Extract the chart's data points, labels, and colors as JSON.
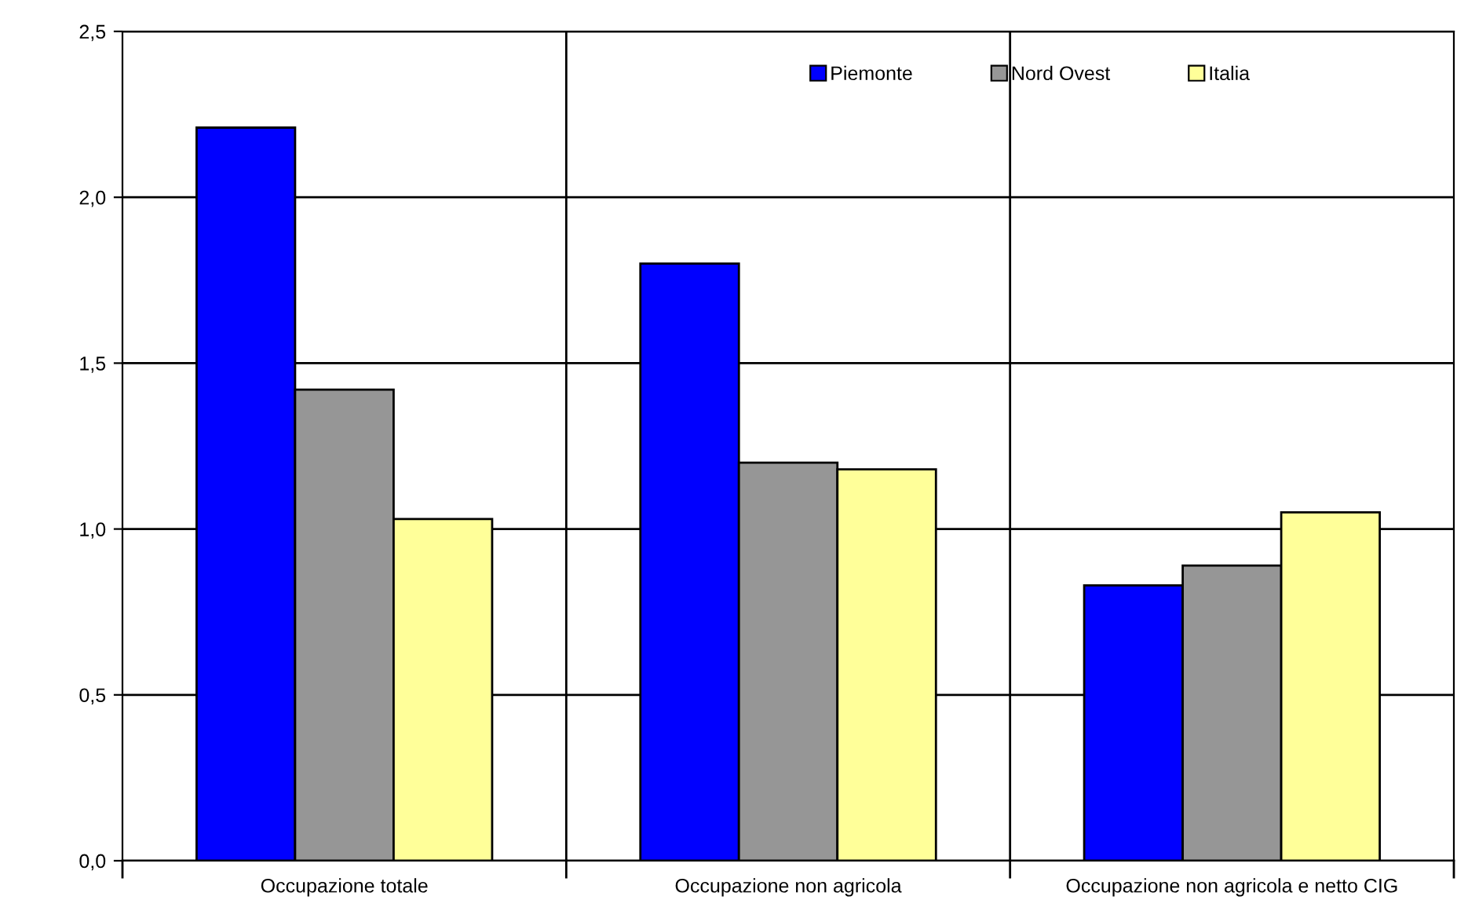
{
  "chart_data": {
    "type": "bar",
    "categories": [
      "Occupazione totale",
      "Occupazione non agricola",
      "Occupazione non agricola e netto CIG"
    ],
    "series": [
      {
        "name": "Piemonte",
        "color": "#0000ff",
        "values": [
          2.21,
          1.8,
          0.83
        ]
      },
      {
        "name": "Nord Ovest",
        "color": "#969696",
        "values": [
          1.42,
          1.2,
          0.89
        ]
      },
      {
        "name": "Italia",
        "color": "#ffff99",
        "values": [
          1.03,
          1.18,
          1.05
        ]
      }
    ],
    "ylim": [
      0,
      2.5
    ],
    "yticks": [
      {
        "value": 0,
        "label": "0,0"
      },
      {
        "value": 0.5,
        "label": "0,5"
      },
      {
        "value": 1,
        "label": "1,0"
      },
      {
        "value": 1.5,
        "label": "1,5"
      },
      {
        "value": 2,
        "label": "2,0"
      },
      {
        "value": 2.5,
        "label": "2,5"
      }
    ],
    "grid": true,
    "legend": "top right"
  }
}
